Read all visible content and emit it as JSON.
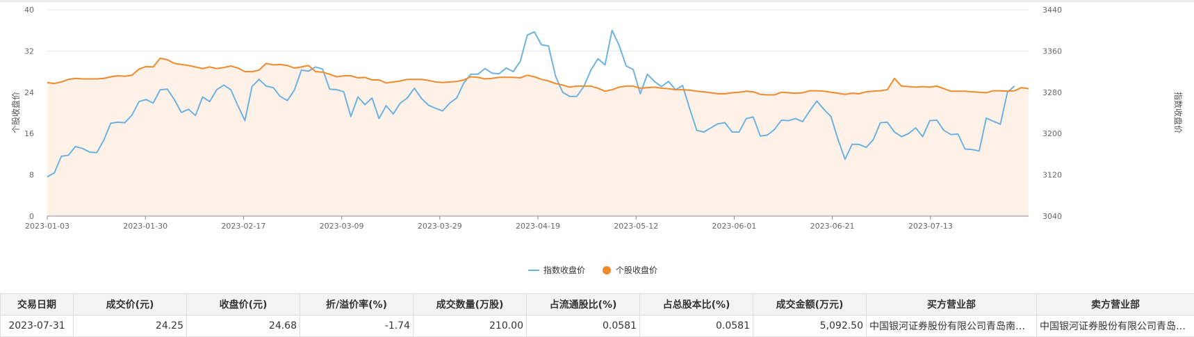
{
  "chart_data": {
    "type": "line",
    "title": "",
    "ylabel_left": "个股收盘价",
    "ylabel_right": "指数收盘价",
    "ylim_left": [
      0,
      40
    ],
    "yticks_left": [
      0,
      8,
      16,
      24,
      32,
      40
    ],
    "ylim_right": [
      3040,
      3440
    ],
    "yticks_right": [
      3040,
      3120,
      3200,
      3280,
      3360,
      3440
    ],
    "xticks": [
      "2023-01-03",
      "2023-01-30",
      "2023-02-17",
      "2023-03-09",
      "2023-03-29",
      "2023-04-19",
      "2023-05-12",
      "2023-06-01",
      "2023-06-21",
      "2023-07-13"
    ],
    "grid": true,
    "legend_position": "bottom-center",
    "colors": {
      "index_line": "#6db2e0",
      "stock_line": "#f08a2a",
      "stock_area": "#fdf1e8"
    },
    "series": [
      {
        "name": "指数收盘价",
        "axis": "right",
        "values": [
          3116,
          3124,
          3156,
          3158,
          3175,
          3171,
          3164,
          3163,
          3187,
          3220,
          3222,
          3221,
          3236,
          3262,
          3266,
          3259,
          3285,
          3286,
          3266,
          3241,
          3247,
          3235,
          3271,
          3262,
          3285,
          3294,
          3285,
          3254,
          3225,
          3291,
          3305,
          3292,
          3289,
          3272,
          3264,
          3284,
          3323,
          3321,
          3329,
          3325,
          3286,
          3285,
          3281,
          3233,
          3271,
          3256,
          3269,
          3229,
          3254,
          3238,
          3259,
          3269,
          3288,
          3268,
          3255,
          3249,
          3244,
          3259,
          3269,
          3298,
          3315,
          3315,
          3326,
          3317,
          3316,
          3327,
          3320,
          3340,
          3391,
          3397,
          3372,
          3370,
          3311,
          3280,
          3272,
          3272,
          3291,
          3323,
          3345,
          3333,
          3400,
          3371,
          3331,
          3324,
          3277,
          3315,
          3301,
          3291,
          3301,
          3285,
          3293,
          3248,
          3206,
          3203,
          3211,
          3219,
          3221,
          3203,
          3203,
          3229,
          3232,
          3195,
          3197,
          3208,
          3226,
          3225,
          3229,
          3223,
          3244,
          3263,
          3247,
          3233,
          3189,
          3150,
          3179,
          3179,
          3173,
          3188,
          3221,
          3222,
          3203,
          3194,
          3200,
          3211,
          3194,
          3225,
          3226,
          3206,
          3198,
          3199,
          3170,
          3169,
          3166,
          3230,
          3224,
          3218,
          3280,
          3292
        ]
      },
      {
        "name": "个股收盘价",
        "axis": "left",
        "values": [
          25.9,
          25.7,
          26.0,
          26.5,
          26.7,
          26.6,
          26.6,
          26.6,
          26.7,
          27.0,
          27.2,
          27.1,
          27.3,
          28.5,
          29.0,
          28.9,
          30.6,
          30.3,
          29.6,
          29.4,
          29.2,
          28.9,
          28.6,
          28.9,
          28.6,
          28.8,
          29.1,
          28.7,
          28.0,
          28.0,
          28.3,
          29.6,
          29.3,
          29.4,
          29.2,
          28.7,
          28.9,
          29.2,
          28.0,
          27.9,
          27.5,
          27.0,
          27.2,
          27.2,
          26.8,
          26.9,
          26.4,
          26.4,
          25.8,
          26.0,
          26.2,
          26.5,
          26.5,
          26.5,
          26.3,
          26.0,
          25.9,
          26.0,
          26.1,
          26.4,
          27.0,
          26.9,
          26.6,
          26.7,
          26.9,
          26.9,
          26.9,
          26.8,
          27.3,
          27.0,
          26.5,
          26.2,
          25.7,
          25.4,
          25.0,
          25.2,
          25.2,
          25.2,
          24.8,
          24.2,
          24.5,
          25.0,
          25.2,
          25.2,
          24.8,
          24.9,
          25.0,
          24.8,
          24.7,
          24.5,
          24.5,
          24.4,
          24.2,
          24.1,
          23.9,
          23.7,
          23.7,
          23.9,
          24.0,
          24.2,
          24.1,
          23.6,
          23.5,
          23.5,
          24.0,
          23.9,
          23.8,
          23.9,
          24.3,
          24.3,
          24.2,
          24.0,
          23.8,
          23.6,
          23.8,
          23.7,
          24.1,
          24.2,
          24.3,
          24.5,
          26.7,
          25.2,
          25.1,
          25.0,
          25.1,
          25.0,
          25.2,
          24.7,
          24.2,
          24.2,
          24.2,
          24.1,
          24.0,
          23.9,
          24.3,
          24.3,
          24.2,
          24.3,
          24.9,
          24.7
        ]
      }
    ]
  },
  "table": {
    "headers": [
      "交易日期",
      "成交价(元)",
      "收盘价(元)",
      "折/溢价率(%)",
      "成交数量(万股)",
      "占流通股比(%)",
      "占总股本比(%)",
      "成交金额(万元)",
      "买方营业部",
      "卖方营业部"
    ],
    "rows": [
      [
        "2023-07-31",
        "24.25",
        "24.68",
        "-1.74",
        "210.00",
        "0.0581",
        "0.0581",
        "5,092.50",
        "中国银河证券股份有限公司青岛南京路证券营业部",
        "中国银河证券股份有限公司青岛南京路证券营业部"
      ]
    ]
  }
}
